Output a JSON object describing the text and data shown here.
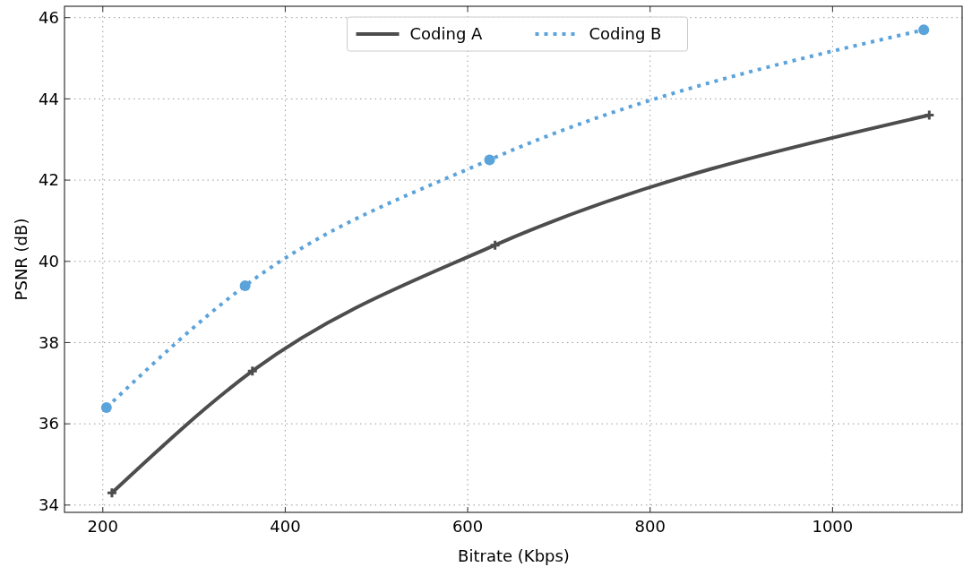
{
  "chart_data": {
    "type": "line",
    "xlabel": "Bitrate (Kbps)",
    "ylabel": "PSNR (dB)",
    "xlim": [
      158,
      1143
    ],
    "ylim": [
      33.82,
      46.28
    ],
    "xticks": [
      200,
      400,
      600,
      800,
      1000
    ],
    "yticks": [
      34,
      36,
      38,
      40,
      42,
      44,
      46
    ],
    "grid": true,
    "legend": "top",
    "series": [
      {
        "name": "Coding A",
        "color": "#4d4d4d",
        "x": [
          210,
          364,
          630,
          1106
        ],
        "values": [
          34.3,
          37.3,
          40.4,
          43.6
        ],
        "marker": "cross",
        "line_style": "solid"
      },
      {
        "name": "Coding B",
        "color": "#5ba3db",
        "x": [
          204,
          356,
          624,
          1100
        ],
        "values": [
          36.4,
          39.4,
          42.5,
          45.7
        ],
        "marker": "circle",
        "line_style": "dotted"
      }
    ]
  }
}
